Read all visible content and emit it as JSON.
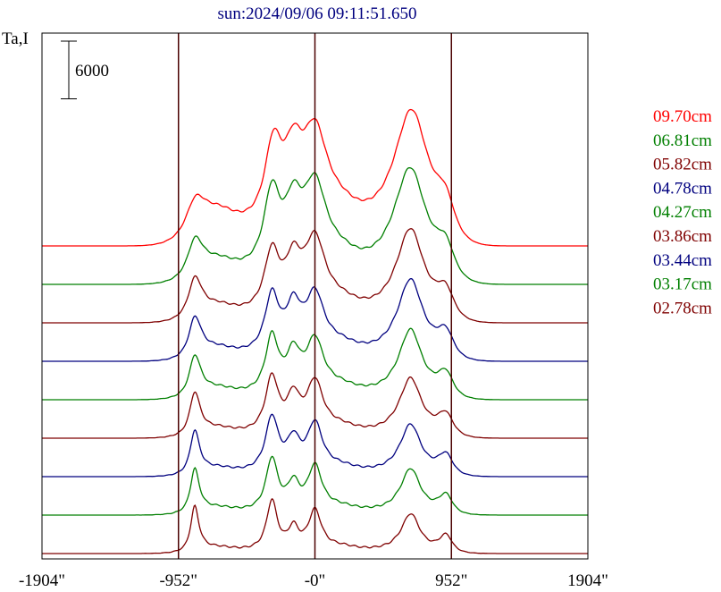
{
  "chart_data": {
    "type": "line",
    "title": "sun:2024/09/06 09:11:51.650",
    "ylabel": "Ta,I",
    "scale_bar_label": "6000",
    "scale_bar_value": 6000,
    "x_tick_labels": [
      "-1904\"",
      "-952\"",
      "-0\"",
      "952\"",
      "1904\""
    ],
    "x_ticks": [
      -1904,
      -952,
      0,
      952,
      1904
    ],
    "xlim": [
      -1904,
      1904
    ],
    "vertical_lines": [
      -952,
      0,
      952
    ],
    "colors": {
      "red": "#ff0000",
      "green": "#007f00",
      "darkred": "#7f0000",
      "navy": "#00007f",
      "frame": "#000000",
      "guide": "#4a0000",
      "title": "#00007f"
    },
    "series": [
      {
        "name": "09.70cm",
        "color": "#ff0000",
        "baseline": 0,
        "peaks": [
          [
            -840,
            5200,
            90
          ],
          [
            -680,
            2600,
            180
          ],
          [
            -290,
            8200,
            75
          ],
          [
            -150,
            6300,
            80
          ],
          [
            0,
            9400,
            110
          ],
          [
            175,
            1900,
            180
          ],
          [
            680,
            14200,
            150
          ],
          [
            920,
            6900,
            90
          ]
        ]
      },
      {
        "name": "06.81cm",
        "color": "#007f00",
        "baseline": -4000,
        "peaks": [
          [
            -840,
            5500,
            70
          ],
          [
            -680,
            1800,
            170
          ],
          [
            -300,
            8000,
            70
          ],
          [
            -150,
            5800,
            75
          ],
          [
            0,
            8500,
            100
          ],
          [
            175,
            1600,
            170
          ],
          [
            670,
            12200,
            140
          ],
          [
            920,
            6100,
            85
          ]
        ]
      },
      {
        "name": "05.82cm",
        "color": "#7f0000",
        "baseline": -8000,
        "peaks": [
          [
            -840,
            5800,
            60
          ],
          [
            -680,
            1300,
            170
          ],
          [
            -300,
            6200,
            65
          ],
          [
            -150,
            4800,
            70
          ],
          [
            0,
            7300,
            90
          ],
          [
            175,
            1300,
            170
          ],
          [
            670,
            9900,
            120
          ],
          [
            920,
            5400,
            80
          ]
        ]
      },
      {
        "name": "04.78cm",
        "color": "#00007f",
        "baseline": -12000,
        "peaks": [
          [
            -840,
            5900,
            55
          ],
          [
            -680,
            1000,
            160
          ],
          [
            -300,
            6000,
            60
          ],
          [
            -150,
            4500,
            65
          ],
          [
            0,
            5900,
            80
          ],
          [
            175,
            1100,
            160
          ],
          [
            670,
            8700,
            110
          ],
          [
            920,
            5000,
            75
          ]
        ]
      },
      {
        "name": "04.27cm",
        "color": "#007f00",
        "baseline": -16000,
        "peaks": [
          [
            -840,
            6000,
            50
          ],
          [
            -680,
            900,
            160
          ],
          [
            -300,
            5900,
            55
          ],
          [
            -150,
            3900,
            60
          ],
          [
            0,
            5400,
            75
          ],
          [
            175,
            900,
            160
          ],
          [
            670,
            7500,
            100
          ],
          [
            920,
            4600,
            70
          ]
        ]
      },
      {
        "name": "03.86cm",
        "color": "#7f0000",
        "baseline": -20000,
        "peaks": [
          [
            -840,
            6300,
            45
          ],
          [
            -680,
            800,
            160
          ],
          [
            -300,
            5800,
            55
          ],
          [
            -150,
            3500,
            55
          ],
          [
            0,
            5200,
            70
          ],
          [
            175,
            800,
            160
          ],
          [
            670,
            6400,
            95
          ],
          [
            920,
            4200,
            70
          ]
        ]
      },
      {
        "name": "03.44cm",
        "color": "#00007f",
        "baseline": -24000,
        "peaks": [
          [
            -840,
            6400,
            40
          ],
          [
            -680,
            700,
            160
          ],
          [
            -300,
            5700,
            55
          ],
          [
            -150,
            3100,
            55
          ],
          [
            0,
            4900,
            65
          ],
          [
            175,
            700,
            160
          ],
          [
            670,
            5600,
            90
          ],
          [
            920,
            3900,
            65
          ]
        ]
      },
      {
        "name": "03.17cm",
        "color": "#007f00",
        "baseline": -28000,
        "peaks": [
          [
            -840,
            6500,
            38
          ],
          [
            -680,
            600,
            160
          ],
          [
            -300,
            5500,
            50
          ],
          [
            -150,
            2700,
            50
          ],
          [
            0,
            4600,
            60
          ],
          [
            175,
            600,
            160
          ],
          [
            670,
            5000,
            85
          ],
          [
            920,
            3600,
            60
          ]
        ]
      },
      {
        "name": "02.78cm",
        "color": "#7f0000",
        "baseline": -32000,
        "peaks": [
          [
            -840,
            6700,
            35
          ],
          [
            -680,
            500,
            160
          ],
          [
            -300,
            5200,
            45
          ],
          [
            -150,
            2200,
            45
          ],
          [
            0,
            4100,
            55
          ],
          [
            175,
            500,
            160
          ],
          [
            670,
            4300,
            80
          ],
          [
            920,
            3300,
            55
          ]
        ]
      }
    ]
  }
}
